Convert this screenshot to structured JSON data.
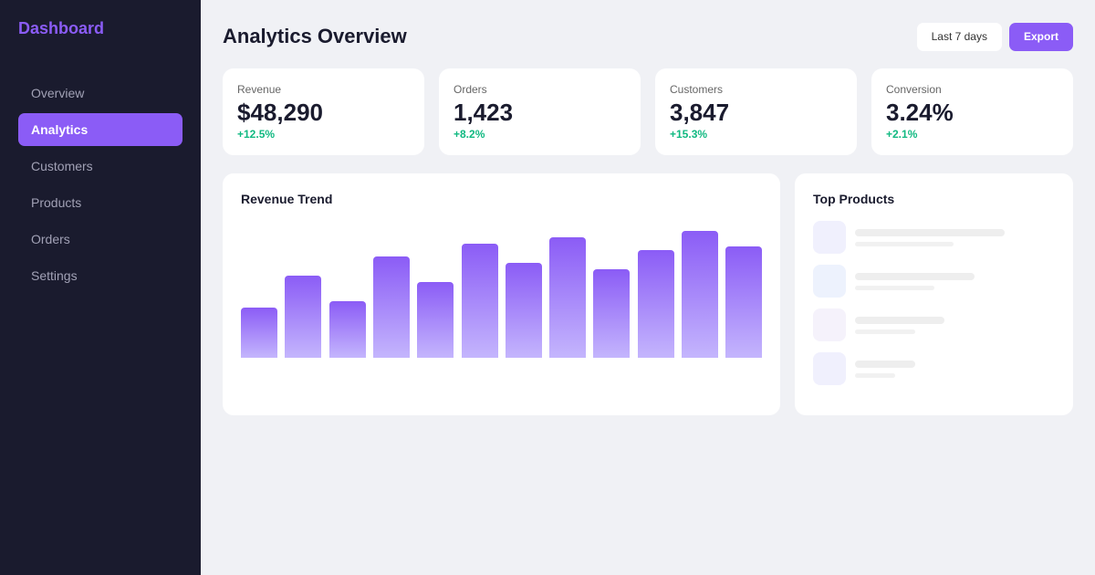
{
  "sidebar": {
    "brand": "Dashboard",
    "items": [
      {
        "label": "Overview",
        "active": false
      },
      {
        "label": "Analytics",
        "active": true
      },
      {
        "label": "Customers",
        "active": false
      },
      {
        "label": "Products",
        "active": false
      },
      {
        "label": "Orders",
        "active": false
      },
      {
        "label": "Settings",
        "active": false
      }
    ]
  },
  "header": {
    "title": "Analytics Overview",
    "range_label": "Last 7 days",
    "export_label": "Export"
  },
  "stats": [
    {
      "label": "Revenue",
      "value": "$48,290",
      "change": "+12.5%"
    },
    {
      "label": "Orders",
      "value": "1,423",
      "change": "+8.2%"
    },
    {
      "label": "Customers",
      "value": "3,847",
      "change": "+15.3%"
    },
    {
      "label": "Conversion",
      "value": "3.24%",
      "change": "+2.1%"
    }
  ],
  "colors": {
    "accent": "#8b5cf6",
    "positive": "#10b981",
    "sidebar": "#1a1b2e"
  },
  "revenue_card": {
    "title": "Revenue Trend"
  },
  "chart_data": {
    "type": "bar",
    "values": [
      39,
      64,
      44,
      79,
      59,
      89,
      74,
      94,
      69,
      84,
      99,
      87
    ],
    "ylim": [
      0,
      100
    ]
  },
  "top_products": {
    "title": "Top Products",
    "placeholders": [
      {
        "thumb_color": "#f0f0fd",
        "line1_pct": 100,
        "line2_pct": 66
      },
      {
        "thumb_color": "#edf2fd",
        "line1_pct": 80,
        "line2_pct": 53
      },
      {
        "thumb_color": "#f5f2fb",
        "line1_pct": 60,
        "line2_pct": 40
      },
      {
        "thumb_color": "#f0f0fd",
        "line1_pct": 40,
        "line2_pct": 27
      }
    ]
  }
}
